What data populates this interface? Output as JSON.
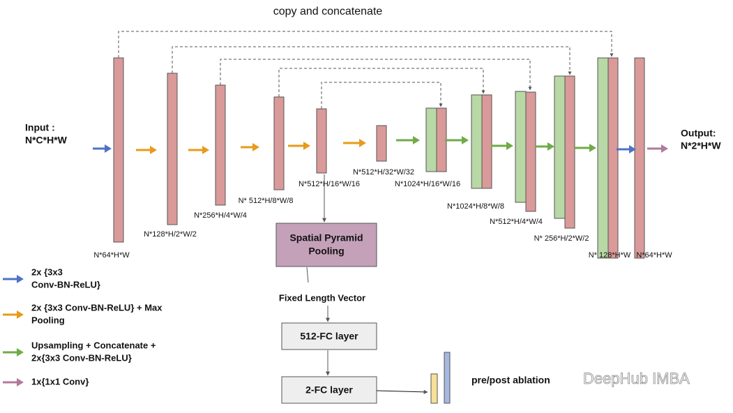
{
  "title": "copy and concatenate",
  "input": {
    "label": "Input :",
    "shape": "N*C*H*W"
  },
  "output": {
    "label": "Output:",
    "shape": "N*2*H*W"
  },
  "feature_labels": [
    "N*64*H*W",
    "N*128*H/2*W/2",
    "N*256*H/4*W/4",
    "N* 512*H/8*W/8",
    "N*512*H/16*W/16",
    "N*512*H/32*W/32",
    "N*1024*H/16*W/16",
    "N*1024*H/8*W/8",
    "N*512*H/4*W/4",
    "N* 256*H/2*W/2",
    "N* 128*H*W",
    "N*64*H*W"
  ],
  "spp": {
    "line1": "Spatial Pyramid",
    "line2": "Pooling"
  },
  "vector": "Fixed Length Vector",
  "fc1": "512-FC layer",
  "fc2": "2-FC layer",
  "ablation": "pre/post ablation",
  "legend": [
    {
      "line1": "2x {3x3",
      "line2": "Conv-BN-ReLU}"
    },
    {
      "line1": "2x {3x3 Conv-BN-ReLU} + Max",
      "line2": "Pooling"
    },
    {
      "line1": "Upsampling + Concatenate +",
      "line2": "2x{3x3 Conv-BN-ReLU}"
    },
    {
      "line1": "1x{1x1 Conv}"
    }
  ],
  "watermark": "DeepHub IMBA"
}
